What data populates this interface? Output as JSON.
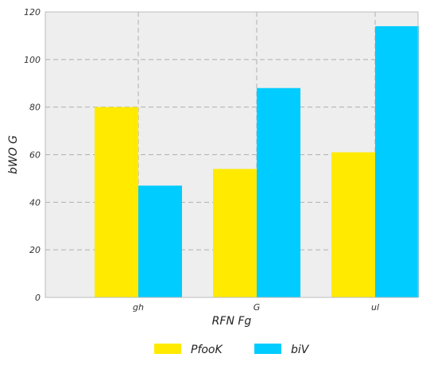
{
  "chart_data": {
    "type": "bar",
    "categories": [
      "gh",
      "G",
      "ul"
    ],
    "series": [
      {
        "name": "PfooK",
        "values": [
          80,
          54,
          61
        ],
        "color": "#ffea00"
      },
      {
        "name": "biV",
        "values": [
          47,
          88,
          114
        ],
        "color": "#00ccff"
      }
    ],
    "xlabel": "RFN Fg",
    "ylabel": "bWO G",
    "ylim": [
      0,
      120
    ],
    "yticks": [
      "0",
      "20",
      "40",
      "60",
      "80",
      "100",
      "120"
    ],
    "grid": true,
    "legend_position": "bottom-center",
    "background": "#eeeeee"
  }
}
